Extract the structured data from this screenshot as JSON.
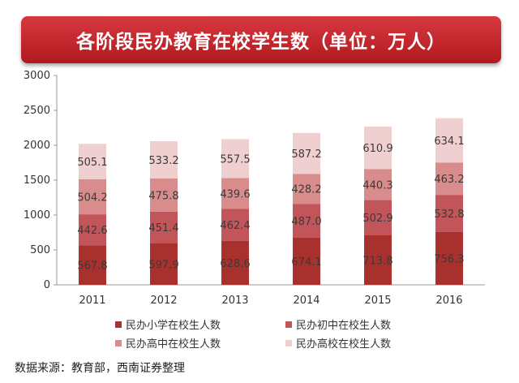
{
  "header": {
    "title": "各阶段民办教育在校学生数（单位：万人）"
  },
  "source_note": "数据来源：教育部，西南证券整理",
  "chart_data": {
    "type": "bar",
    "stacked": true,
    "categories": [
      "2011",
      "2012",
      "2013",
      "2014",
      "2015",
      "2016"
    ],
    "series": [
      {
        "name": "民办小学在校生人数",
        "color": "#a8312e",
        "values": [
          567.8,
          597.9,
          628.6,
          674.1,
          713.8,
          756.3
        ]
      },
      {
        "name": "民办初中在校生人数",
        "color": "#c2555a",
        "values": [
          442.6,
          451.4,
          462.4,
          487.0,
          502.9,
          532.8
        ]
      },
      {
        "name": "民办高中在校生人数",
        "color": "#d98c8c",
        "values": [
          504.2,
          475.8,
          439.6,
          428.2,
          440.3,
          463.2
        ]
      },
      {
        "name": "民办高校在校生人数",
        "color": "#f0cfd1",
        "values": [
          505.1,
          533.2,
          557.5,
          587.2,
          610.9,
          634.1
        ]
      }
    ],
    "data_labels": [
      [
        "567.8",
        "597.9",
        "628.6",
        "674.1",
        "713.8",
        "756.3"
      ],
      [
        "442.6",
        "451.4",
        "462.4",
        "487.0",
        "502.9",
        "532.8"
      ],
      [
        "504.2",
        "475.8",
        "439.6",
        "428.2",
        "440.3",
        "463.2"
      ],
      [
        "505.1",
        "533.2",
        "557.5",
        "587.2",
        "610.9",
        "634.1"
      ]
    ],
    "yticks": [
      "0",
      "500",
      "1000",
      "1500",
      "2000",
      "2500",
      "3000"
    ],
    "ylim": [
      0,
      3000
    ],
    "grid": false,
    "legend_position": "bottom"
  }
}
